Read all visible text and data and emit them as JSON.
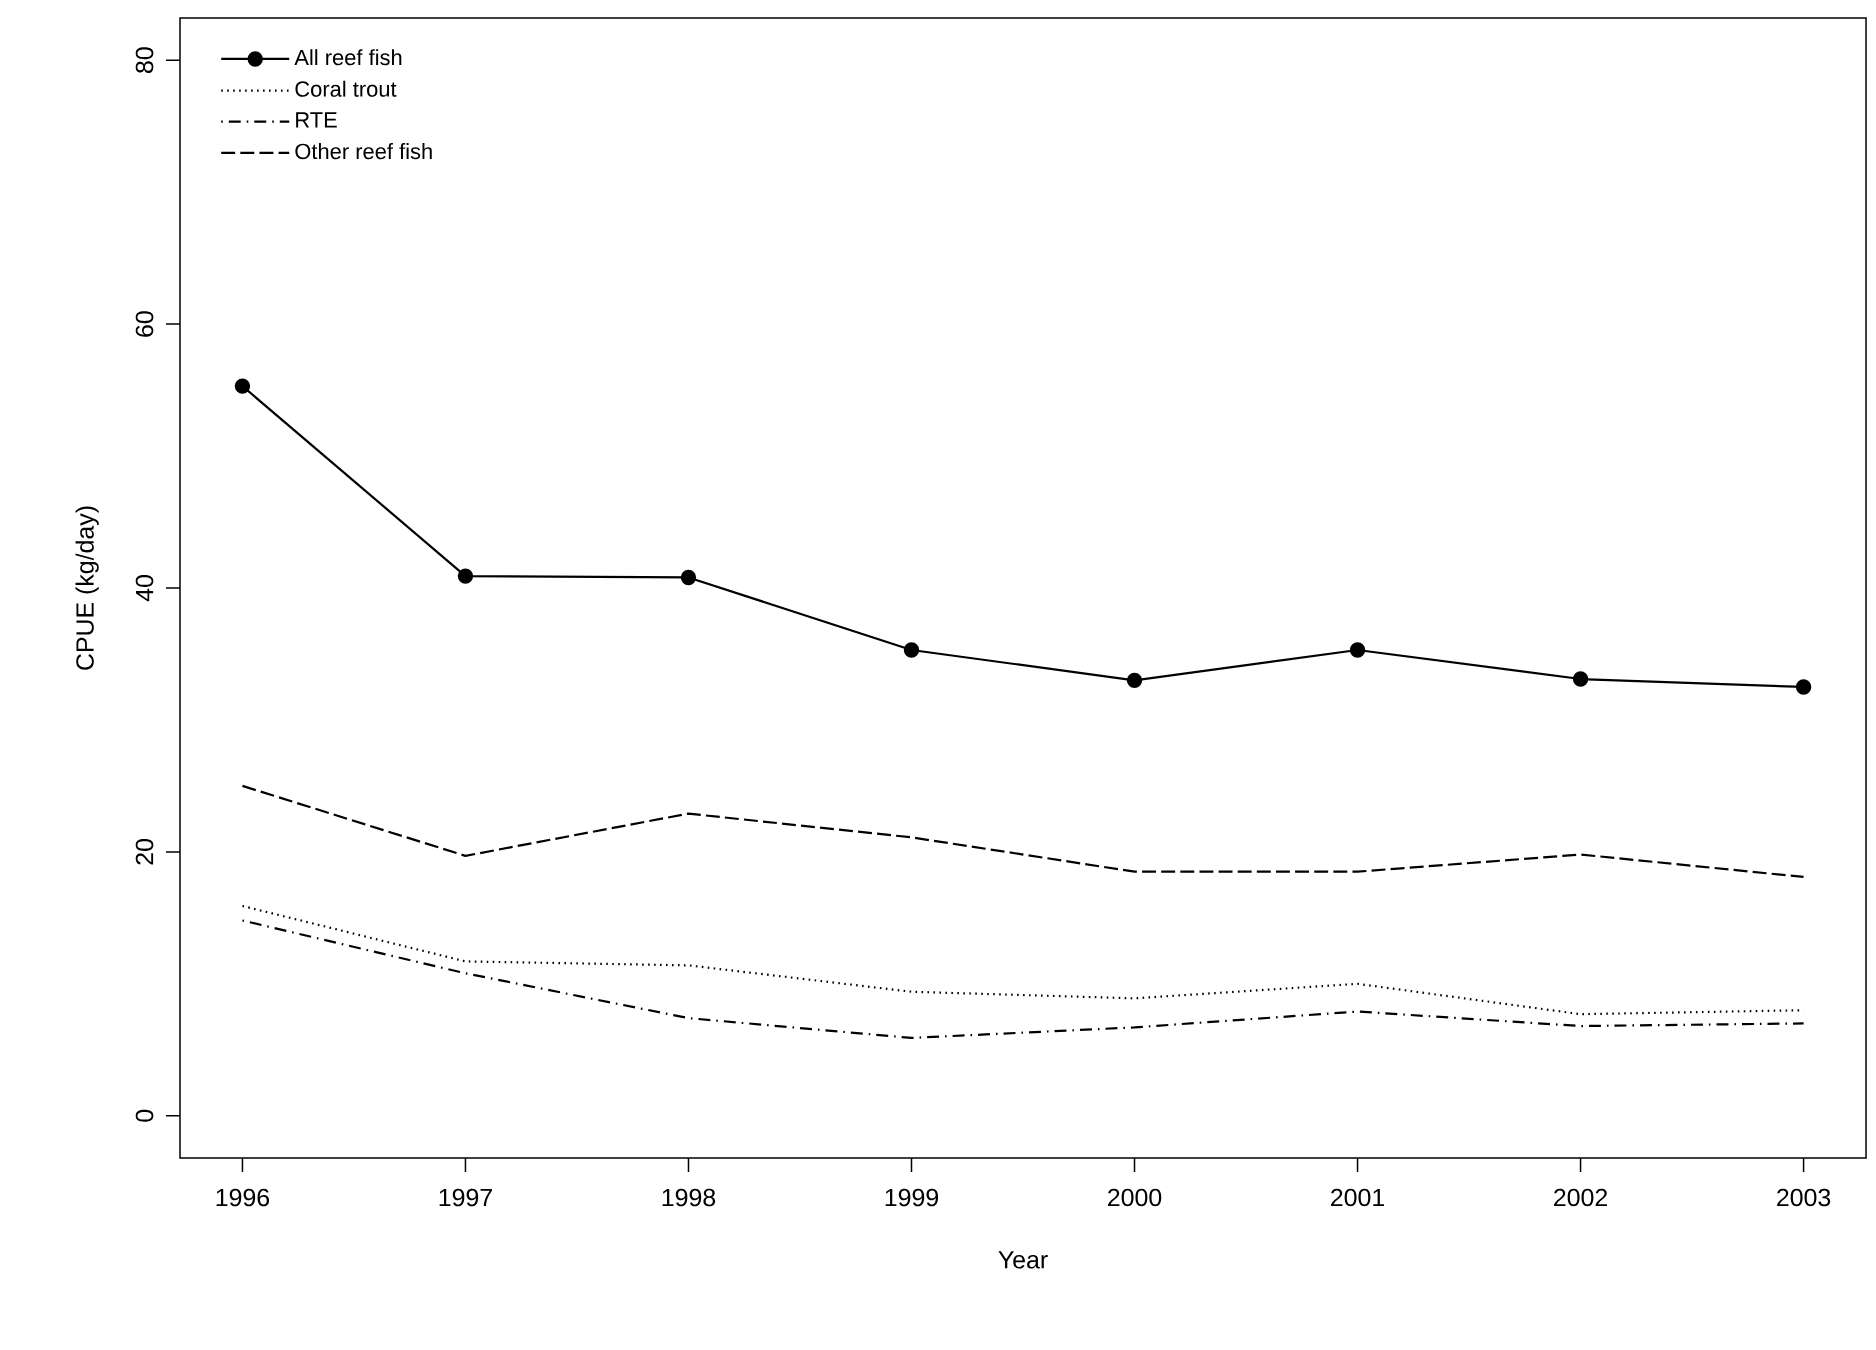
{
  "chart_data": {
    "type": "line",
    "xlabel": "Year",
    "ylabel": "CPUE (kg/day)",
    "x": [
      1996,
      1997,
      1998,
      1999,
      2000,
      2001,
      2002,
      2003
    ],
    "series": [
      {
        "name": "All reef fish",
        "color": "#000000",
        "marker": "circle",
        "line_style": "solid",
        "values": [
          55.3,
          40.9,
          40.8,
          35.3,
          33.0,
          35.3,
          33.1,
          32.5
        ]
      },
      {
        "name": "Coral trout",
        "color": "#000000",
        "marker": "none",
        "line_style": "dotted",
        "values": [
          15.9,
          11.7,
          11.4,
          9.4,
          8.9,
          10.0,
          7.7,
          8.0
        ]
      },
      {
        "name": "RTE",
        "color": "#000000",
        "marker": "none",
        "line_style": "dashdot",
        "values": [
          14.8,
          10.8,
          7.4,
          5.9,
          6.7,
          7.9,
          6.8,
          7.0
        ]
      },
      {
        "name": "Other reef fish",
        "color": "#000000",
        "marker": "none",
        "line_style": "dashed",
        "values": [
          25.0,
          19.7,
          22.9,
          21.1,
          18.5,
          18.5,
          19.8,
          18.1
        ]
      }
    ],
    "xlim": [
      1995.72,
      2003.28
    ],
    "ylim": [
      -3.2,
      83.2
    ],
    "xticks": [
      1996,
      1997,
      1998,
      1999,
      2000,
      2001,
      2002,
      2003
    ],
    "yticks": [
      0,
      20,
      40,
      60,
      80
    ],
    "legend": "top left",
    "grid": false
  }
}
